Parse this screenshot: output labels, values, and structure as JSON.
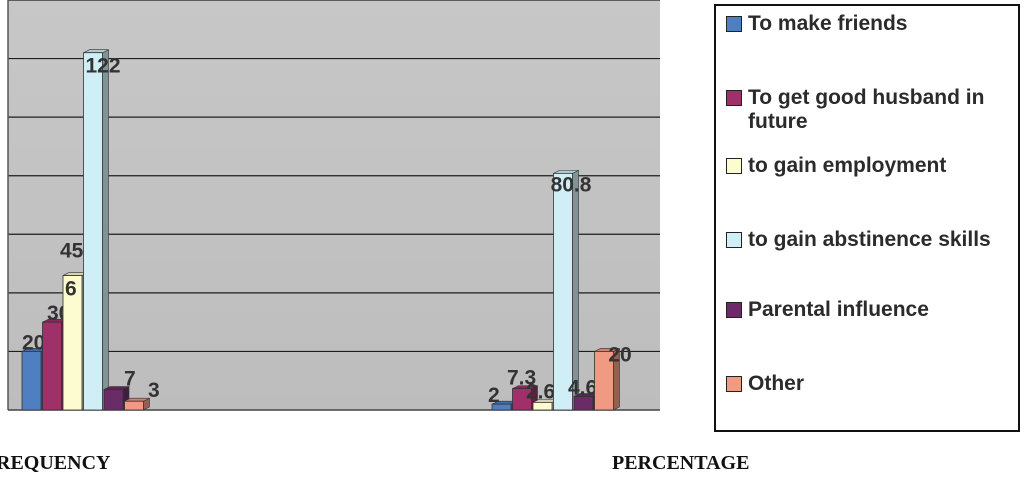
{
  "chart_data": {
    "type": "bar",
    "categories": [
      "FREQUENCY",
      "PERCENTAGE"
    ],
    "category_labels_visible": [
      "REQUENCY",
      "PERCENTAGE"
    ],
    "ylim": [
      0,
      140
    ],
    "grid": true,
    "legend_placement": "right",
    "series": [
      {
        "name": "To make friends",
        "color": "#4f7fc0",
        "values": [
          20,
          2
        ]
      },
      {
        "name": "To get good husband in future",
        "color": "#a0306a",
        "values": [
          30,
          7.3
        ]
      },
      {
        "name": "to gain employment",
        "color": "#fdfbd0",
        "values": [
          45.9,
          2.6
        ]
      },
      {
        "name": "to gain abstinence skills",
        "color": "#cfeef5",
        "values": [
          122,
          80.8
        ]
      },
      {
        "name": "Parental influence",
        "color": "#6a2b68",
        "values": [
          7,
          4.6
        ]
      },
      {
        "name": "Other",
        "color": "#f09a84",
        "values": [
          3,
          20
        ]
      }
    ],
    "data_labels": [
      [
        "20",
        "30",
        "45.9",
        "122",
        "7",
        "3"
      ],
      [
        "2",
        "7.3",
        "2.6",
        "80.8",
        "4.6",
        "20"
      ]
    ],
    "extra_labels": [
      {
        "text": "6",
        "series": 2,
        "group": 0
      }
    ]
  },
  "legend": {
    "items": [
      "To make friends",
      "To get good husband in future",
      "to gain employment",
      "to gain abstinence skills",
      "Parental influence",
      "Other"
    ]
  },
  "axis_titles": {
    "left": "REQUENCY",
    "right": "PERCENTAGE"
  }
}
